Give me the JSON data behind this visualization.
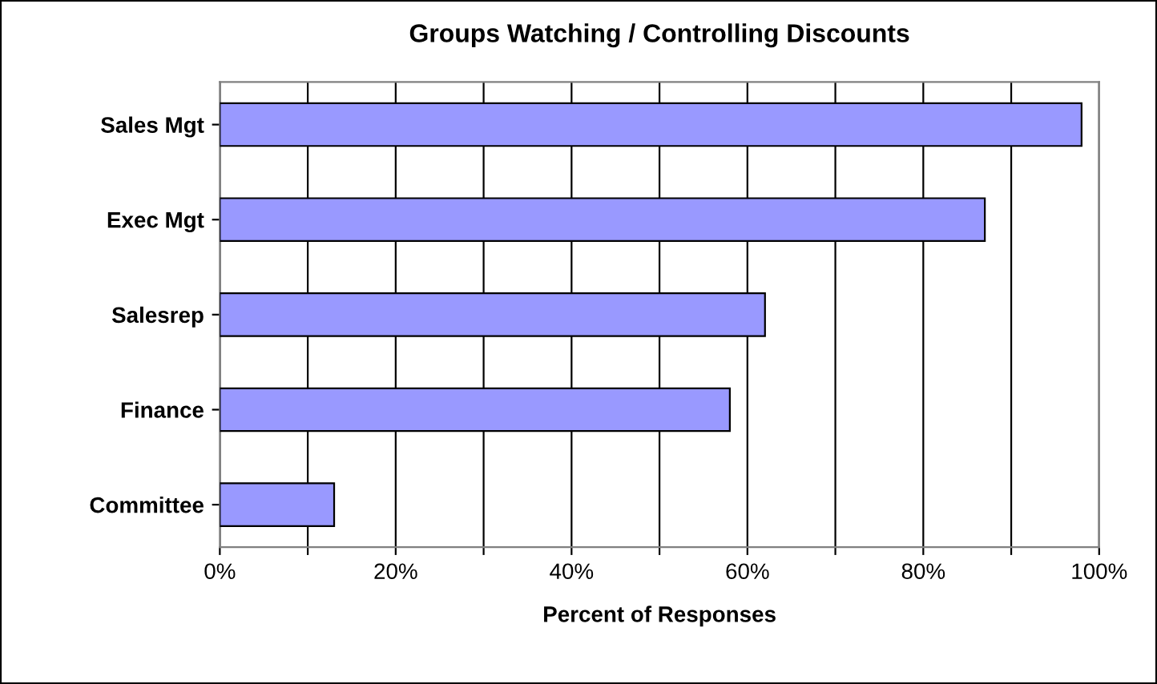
{
  "chart_data": {
    "type": "bar",
    "orientation": "horizontal",
    "title": "Groups Watching / Controlling Discounts",
    "xlabel": "Percent of Responses",
    "categories": [
      "Sales Mgt",
      "Exec Mgt",
      "Salesrep",
      "Finance",
      "Committee"
    ],
    "values": [
      98,
      87,
      62,
      58,
      13
    ],
    "color": "#9999ff",
    "xlim": [
      0,
      100
    ],
    "xticks": [
      {
        "value": 0,
        "label": "0%"
      },
      {
        "value": 10,
        "label": null
      },
      {
        "value": 20,
        "label": "20%"
      },
      {
        "value": 30,
        "label": null
      },
      {
        "value": 40,
        "label": "40%"
      },
      {
        "value": 50,
        "label": null
      },
      {
        "value": 60,
        "label": "60%"
      },
      {
        "value": 70,
        "label": null
      },
      {
        "value": 80,
        "label": "80%"
      },
      {
        "value": 90,
        "label": null
      },
      {
        "value": 100,
        "label": "100%"
      }
    ],
    "grid": "x",
    "legend": false
  }
}
